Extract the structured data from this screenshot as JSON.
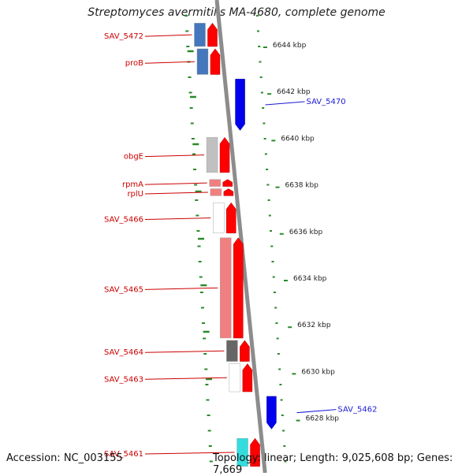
{
  "title": "Streptomyces avermitilis MA-4680, complete genome",
  "footer": {
    "accession": "Accession: NC_003155",
    "summary": "Topology: linear; Length: 9,025,608 bp; Genes: 7,669"
  },
  "colors": {
    "forward_gene": "#ff0000",
    "reverse_gene": "#0000ee",
    "reverse_label": "#1a1ad6",
    "forward_label": "#cc0000",
    "backbone": "#8c8c8c",
    "tick": "#2a8a2a"
  },
  "scale": {
    "labels": [
      {
        "text": "6644 kbp",
        "kbp": 6644
      },
      {
        "text": "6642 kbp",
        "kbp": 6642
      },
      {
        "text": "6640 kbp",
        "kbp": 6640
      },
      {
        "text": "6638 kbp",
        "kbp": 6638
      },
      {
        "text": "6636 kbp",
        "kbp": 6636
      },
      {
        "text": "6634 kbp",
        "kbp": 6634
      },
      {
        "text": "6632 kbp",
        "kbp": 6632
      },
      {
        "text": "6630 kbp",
        "kbp": 6630
      },
      {
        "text": "6628 kbp",
        "kbp": 6628
      }
    ]
  },
  "genes": [
    {
      "label": "SAV_5472",
      "strand": "forward",
      "shade": "#4477bb",
      "start_kbp": 6644.9,
      "end_kbp": 6643.9
    },
    {
      "label": "proB",
      "strand": "forward",
      "shade": "#4477bb",
      "start_kbp": 6643.8,
      "end_kbp": 6642.7
    },
    {
      "label": "SAV_5470",
      "strand": "reverse",
      "shade": "#aab8e8",
      "start_kbp": 6642.5,
      "end_kbp": 6640.3
    },
    {
      "label": "obgE",
      "strand": "forward",
      "shade": "#c0c0c0",
      "start_kbp": 6640.0,
      "end_kbp": 6638.5
    },
    {
      "label": "rpmA",
      "strand": "forward",
      "shade": "#f08080",
      "start_kbp": 6638.2,
      "end_kbp": 6637.9
    },
    {
      "label": "rplU",
      "strand": "forward",
      "shade": "#f08080",
      "start_kbp": 6637.8,
      "end_kbp": 6637.5
    },
    {
      "label": "SAV_5466",
      "strand": "forward",
      "shade": "#ffffff",
      "start_kbp": 6637.2,
      "end_kbp": 6635.9
    },
    {
      "label": "SAV_5465",
      "strand": "forward",
      "shade": "#f08080",
      "start_kbp": 6635.7,
      "end_kbp": 6631.4
    },
    {
      "label": "SAV_5464",
      "strand": "forward",
      "shade": "#666666",
      "start_kbp": 6631.3,
      "end_kbp": 6630.4
    },
    {
      "label": "SAV_5463",
      "strand": "forward",
      "shade": "#ffffff",
      "start_kbp": 6630.3,
      "end_kbp": 6629.1
    },
    {
      "label": "SAV_5462",
      "strand": "reverse",
      "shade": "#ffffff",
      "start_kbp": 6628.9,
      "end_kbp": 6627.5
    },
    {
      "label": "SAV_5461",
      "strand": "forward",
      "shade": "#33dddd",
      "start_kbp": 6627.1,
      "end_kbp": 6625.9
    }
  ]
}
